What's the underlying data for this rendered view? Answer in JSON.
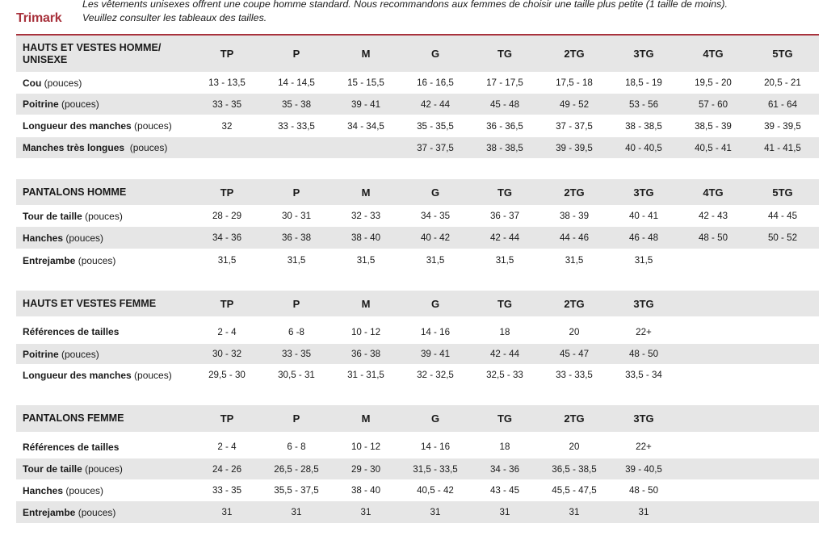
{
  "brand": "Trimark",
  "note": {
    "line1": "Les vêtements unisexes offrent une coupe homme standard. Nous recommandons aux femmes de choisir une taille plus petite (1 taille de moins).",
    "line2": "Veuillez consulter les tableaux des tailles."
  },
  "colors": {
    "accent": "#a8323c",
    "row_shade": "#e6e6e6"
  },
  "tables": [
    {
      "title": "HAUTS ET VESTES HOMME/ UNISEXE",
      "sizes": [
        "TP",
        "P",
        "M",
        "G",
        "TG",
        "2TG",
        "3TG",
        "4TG",
        "5TG"
      ],
      "rows": [
        {
          "name": "Cou",
          "unit": "(pouces)",
          "values": [
            "13 - 13,5",
            "14 - 14,5",
            "15 - 15,5",
            "16 - 16,5",
            "17 - 17,5",
            "17,5 - 18",
            "18,5 - 19",
            "19,5 - 20",
            "20,5 - 21"
          ]
        },
        {
          "name": "Poitrine",
          "unit": "(pouces)",
          "values": [
            "33 - 35",
            "35 - 38",
            "39 - 41",
            "42 - 44",
            "45 - 48",
            "49 - 52",
            "53 - 56",
            "57 - 60",
            "61 - 64"
          ]
        },
        {
          "name": "Longueur des manches",
          "unit": "(pouces)",
          "values": [
            "32",
            "33 - 33,5",
            "34 - 34,5",
            "35 - 35,5",
            "36 - 36,5",
            "37 - 37,5",
            "38 - 38,5",
            "38,5 - 39",
            "39 - 39,5"
          ]
        },
        {
          "name": "Manches très longues",
          "unit": " (pouces)",
          "values": [
            "",
            "",
            "",
            "37 - 37,5",
            "38 - 38,5",
            "39 - 39,5",
            "40 - 40,5",
            "40,5 - 41",
            "41 - 41,5"
          ]
        }
      ]
    },
    {
      "title": "PANTALONS HOMME",
      "sizes": [
        "TP",
        "P",
        "M",
        "G",
        "TG",
        "2TG",
        "3TG",
        "4TG",
        "5TG"
      ],
      "rows": [
        {
          "name": "Tour de taille",
          "unit": "(pouces)",
          "values": [
            "28 - 29",
            "30 - 31",
            "32 - 33",
            "34 - 35",
            "36 - 37",
            "38 - 39",
            "40 - 41",
            "42 - 43",
            "44 - 45"
          ]
        },
        {
          "name": "Hanches",
          "unit": "(pouces)",
          "values": [
            "34 - 36",
            "36 - 38",
            "38 - 40",
            "40 - 42",
            "42 - 44",
            "44 - 46",
            "46 - 48",
            "48 - 50",
            "50 - 52"
          ]
        },
        {
          "name": "Entrejambe",
          "unit": "(pouces)",
          "values": [
            "31,5",
            "31,5",
            "31,5",
            "31,5",
            "31,5",
            "31,5",
            "31,5",
            "",
            ""
          ]
        }
      ]
    },
    {
      "title": "HAUTS ET VESTES FEMME",
      "sizes": [
        "TP",
        "P",
        "M",
        "G",
        "TG",
        "2TG",
        "3TG",
        "",
        ""
      ],
      "rows": [
        {
          "name": "Références de tailles",
          "unit": "",
          "values": [
            "2 - 4",
            "6 -8",
            "10 - 12",
            "14 - 16",
            "18",
            "20",
            "22+",
            "",
            ""
          ]
        },
        {
          "name": "Poitrine",
          "unit": "(pouces)",
          "values": [
            "30 - 32",
            "33 - 35",
            "36 - 38",
            "39 - 41",
            "42 - 44",
            "45 - 47",
            "48 - 50",
            "",
            ""
          ]
        },
        {
          "name": "Longueur des manches",
          "unit": "(pouces)",
          "values": [
            "29,5 - 30",
            "30,5 - 31",
            "31 - 31,5",
            "32 - 32,5",
            "32,5 - 33",
            "33 - 33,5",
            "33,5 - 34",
            "",
            ""
          ]
        }
      ]
    },
    {
      "title": "PANTALONS FEMME",
      "sizes": [
        "TP",
        "P",
        "M",
        "G",
        "TG",
        "2TG",
        "3TG",
        "",
        ""
      ],
      "rows": [
        {
          "name": "Références de tailles",
          "unit": "",
          "values": [
            "2 - 4",
            "6 - 8",
            "10 - 12",
            "14 - 16",
            "18",
            "20",
            "22+",
            "",
            ""
          ]
        },
        {
          "name": "Tour de taille",
          "unit": "(pouces)",
          "values": [
            "24 - 26",
            "26,5 - 28,5",
            "29 - 30",
            "31,5 - 33,5",
            "34 - 36",
            "36,5 - 38,5",
            "39 - 40,5",
            "",
            ""
          ]
        },
        {
          "name": "Hanches",
          "unit": "(pouces)",
          "values": [
            "33 - 35",
            "35,5 - 37,5",
            "38 - 40",
            "40,5 - 42",
            "43 - 45",
            "45,5 - 47,5",
            "48 - 50",
            "",
            ""
          ]
        },
        {
          "name": "Entrejambe",
          "unit": "(pouces)",
          "values": [
            "31",
            "31",
            "31",
            "31",
            "31",
            "31",
            "31",
            "",
            ""
          ]
        }
      ]
    }
  ]
}
